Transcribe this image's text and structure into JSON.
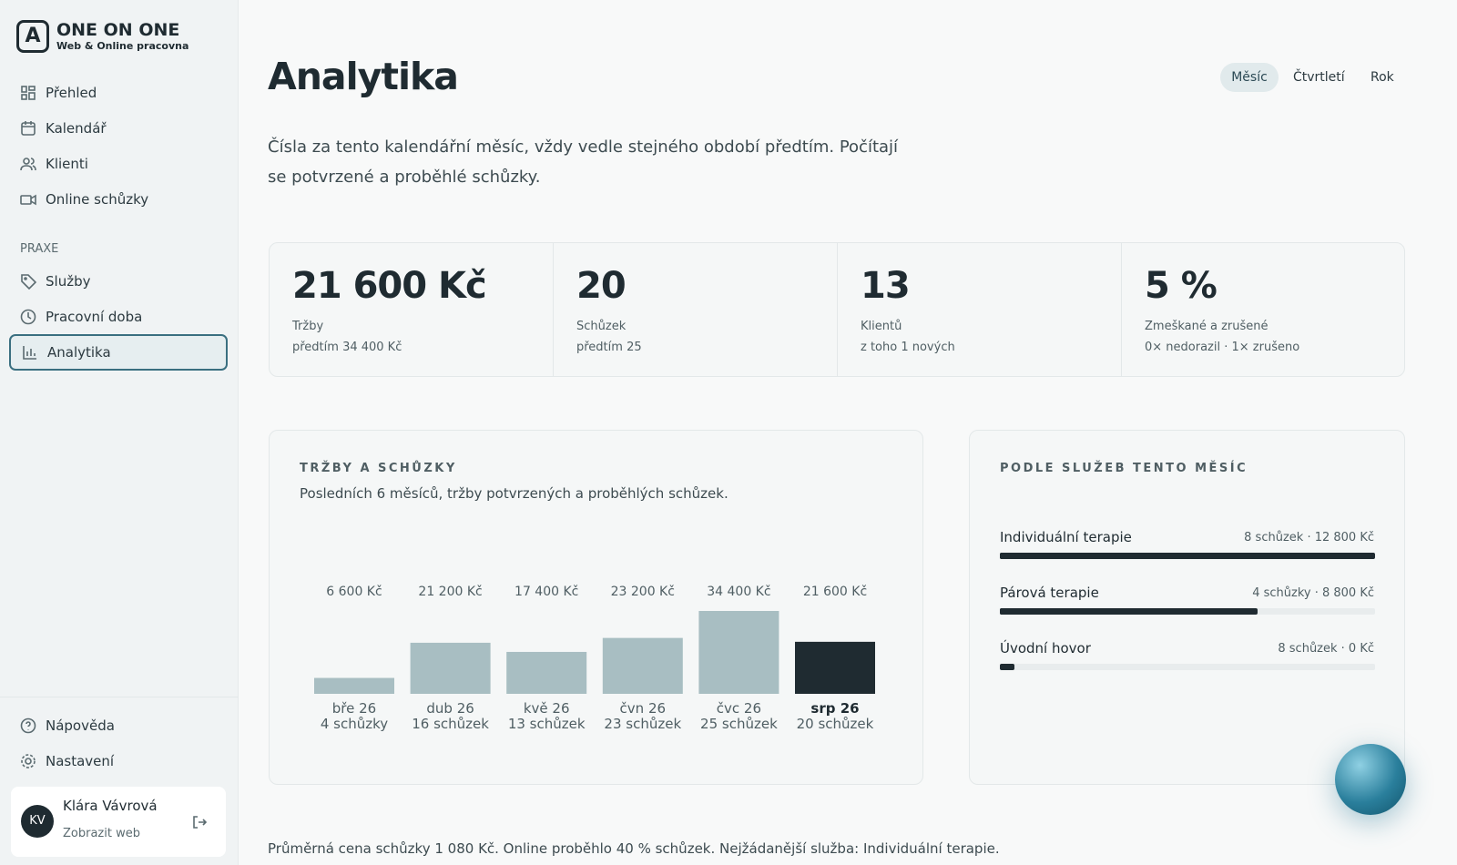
{
  "brand": {
    "name": "ONE ON ONE",
    "tagline": "Web & Online pracovna"
  },
  "nav": {
    "main": [
      "Přehled",
      "Kalendář",
      "Klienti",
      "Online schůzky"
    ],
    "section": "PRAXE",
    "practice": [
      "Služby",
      "Pracovní doba",
      "Analytika"
    ],
    "footer": [
      "Nápověda",
      "Nastavení"
    ]
  },
  "user": {
    "initials": "KV",
    "name": "Klára Vávrová",
    "link": "Zobrazit web"
  },
  "header": {
    "title": "Analytika",
    "periods": [
      "Měsíc",
      "Čtvrtletí",
      "Rok"
    ],
    "description": "Čísla za tento kalendářní měsíc, vždy vedle stejného období předtím. Počítají se potvrzené a proběhlé schůzky."
  },
  "stats": [
    {
      "value": "21 600 Kč",
      "label": "Tržby",
      "note": "předtím 34 400 Kč"
    },
    {
      "value": "20",
      "label": "Schůzek",
      "note": "předtím 25"
    },
    {
      "value": "13",
      "label": "Klientů",
      "note": "z toho 1 nových"
    },
    {
      "value": "5 %",
      "label": "Zmeškané a zrušené",
      "note": "0× nedorazil · 1× zrušeno"
    }
  ],
  "revenue_chart": {
    "type": "bar",
    "title": "TRŽBY A SCHŮZKY",
    "subtitle": "Posledních 6 měsíců, tržby potvrzených a proběhlých schůzek.",
    "categories": [
      "bře 26",
      "dub 26",
      "kvě 26",
      "čvn 26",
      "čvc 26",
      "srp 26"
    ],
    "counts": [
      "4 schůzky",
      "16 schůzek",
      "13 schůzek",
      "23 schůzek",
      "25 schůzek",
      "20 schůzek"
    ],
    "values": [
      6600,
      21200,
      17400,
      23200,
      34400,
      21600
    ],
    "value_labels": [
      "6 600 Kč",
      "21 200 Kč",
      "17 400 Kč",
      "23 200 Kč",
      "34 400 Kč",
      "21 600 Kč"
    ],
    "color": "#a8bec2",
    "highlight_color": "#1f2b31"
  },
  "services": {
    "title": "PODLE SLUŽEB TENTO MĚSÍC",
    "items": [
      {
        "name": "Individuální terapie",
        "meta": "8 schůzek · 12 800 Kč",
        "revenue": 12800
      },
      {
        "name": "Párová terapie",
        "meta": "4 schůzky · 8 800 Kč",
        "revenue": 8800
      },
      {
        "name": "Úvodní hovor",
        "meta": "8 schůzek · 0 Kč",
        "revenue": 0
      }
    ]
  },
  "summary": "Průměrná cena schůzky 1 080 Kč. Online proběhlo 40 % schůzek. Nejžádanější služba: Individuální terapie."
}
